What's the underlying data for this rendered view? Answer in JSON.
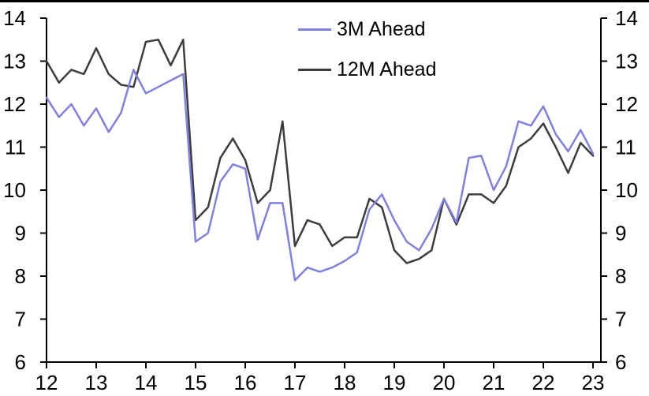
{
  "chart_data": {
    "type": "line",
    "title": "",
    "xlabel": "",
    "ylabel": "",
    "grid": false,
    "legend_position": "top-center",
    "axis_color": "#000000",
    "x_range": [
      12,
      23.16
    ],
    "y_range": [
      6,
      14
    ],
    "x_ticks": [
      12,
      13,
      14,
      15,
      16,
      17,
      18,
      19,
      20,
      21,
      22,
      23
    ],
    "y_ticks": [
      6,
      7,
      8,
      9,
      10,
      11,
      12,
      13,
      14
    ],
    "y_ticks_right": [
      6,
      7,
      8,
      9,
      10,
      11,
      12,
      13,
      14
    ],
    "x": [
      12.0,
      12.25,
      12.5,
      12.75,
      13.0,
      13.25,
      13.5,
      13.75,
      14.0,
      14.25,
      14.5,
      14.75,
      15.0,
      15.25,
      15.5,
      15.75,
      16.0,
      16.25,
      16.5,
      16.75,
      17.0,
      17.25,
      17.5,
      17.75,
      18.0,
      18.25,
      18.5,
      18.75,
      19.0,
      19.25,
      19.5,
      19.75,
      20.0,
      20.25,
      20.5,
      20.75,
      21.0,
      21.25,
      21.5,
      21.75,
      22.0,
      22.25,
      22.5,
      22.75,
      23.0
    ],
    "series": [
      {
        "name": "3M Ahead",
        "color": "#8180de",
        "values": [
          12.15,
          11.7,
          12.0,
          11.5,
          11.9,
          11.35,
          11.8,
          12.8,
          12.25,
          12.4,
          12.55,
          12.7,
          8.8,
          9.0,
          10.2,
          10.6,
          10.5,
          8.85,
          9.7,
          9.7,
          7.9,
          8.2,
          8.1,
          8.2,
          8.35,
          8.55,
          9.55,
          9.9,
          9.3,
          8.8,
          8.6,
          9.1,
          9.8,
          9.25,
          10.75,
          10.8,
          10.0,
          10.55,
          11.6,
          11.5,
          11.95,
          11.3,
          10.9,
          11.4,
          10.85
        ]
      },
      {
        "name": "12M Ahead",
        "color": "#3d3d3d",
        "values": [
          13.0,
          12.5,
          12.8,
          12.7,
          13.3,
          12.7,
          12.45,
          12.4,
          13.45,
          13.5,
          12.9,
          13.5,
          9.3,
          9.6,
          10.75,
          11.2,
          10.7,
          9.7,
          10.0,
          11.6,
          8.7,
          9.3,
          9.2,
          8.7,
          8.9,
          8.9,
          9.8,
          9.6,
          8.6,
          8.3,
          8.4,
          8.6,
          9.8,
          9.2,
          9.9,
          9.9,
          9.7,
          10.1,
          11.0,
          11.2,
          11.55,
          11.0,
          10.4,
          11.1,
          10.8
        ]
      }
    ]
  }
}
